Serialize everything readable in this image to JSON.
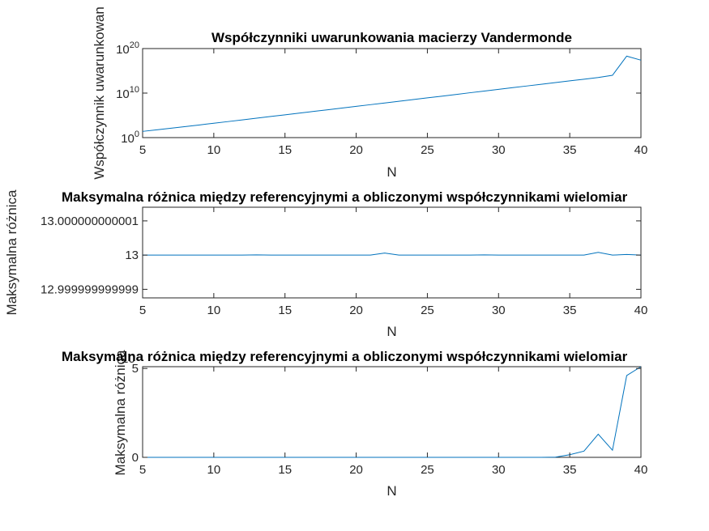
{
  "colors": {
    "series": "#0072BD",
    "axis": "#262626",
    "title": "#000000"
  },
  "chart_data": [
    {
      "type": "line",
      "title": "Współczynniki uwarunkowania macierzy Vandermonde",
      "xlabel": "N",
      "ylabel": "Współczynnik uwarunkowan",
      "xlim": [
        5,
        40
      ],
      "ylim": [
        1,
        1e+20
      ],
      "yscale": "log",
      "xticks": [
        "5",
        "10",
        "15",
        "20",
        "25",
        "30",
        "35",
        "40"
      ],
      "yticks": [
        {
          "value": 1,
          "base": "10",
          "exp": "0"
        },
        {
          "value": 10000000000.0,
          "base": "10",
          "exp": "10"
        },
        {
          "value": 1e+20,
          "base": "10",
          "exp": "20"
        }
      ],
      "x": [
        5,
        6,
        7,
        8,
        9,
        10,
        11,
        12,
        13,
        14,
        15,
        16,
        17,
        18,
        19,
        20,
        21,
        22,
        23,
        24,
        25,
        26,
        27,
        28,
        29,
        30,
        31,
        32,
        33,
        34,
        35,
        36,
        37,
        38,
        39,
        40
      ],
      "y": [
        25.0,
        55.0,
        130.0,
        300.0,
        700.0,
        1700.0,
        4000.0,
        9500.0,
        23000.0,
        55000.0,
        130000.0,
        320000.0,
        760000.0,
        1800000.0,
        4400000.0,
        10500000.0,
        25000000.0,
        60000000.0,
        145000000.0,
        350000000.0,
        850000000.0,
        2000000000.0,
        4900000000.0,
        12000000000.0,
        28000000000.0,
        68000000000.0,
        165000000000.0,
        400000000000.0,
        950000000000.0,
        2300000000000.0,
        5500000000000.0,
        13000000000000.0,
        32000000000000.0,
        100000000000000.0,
        2e+18,
        2.5e+17
      ]
    },
    {
      "type": "line",
      "title": "Maksymalna różnica między referencyjnymi a obliczonymi współczynnikami wielomiar",
      "xlabel": "N",
      "ylabel": "Maksymalna różnica",
      "xlim": [
        5,
        40
      ],
      "ylim": [
        12.99999999999875,
        13.0000000000014
      ],
      "xticks": [
        "5",
        "10",
        "15",
        "20",
        "25",
        "30",
        "35",
        "40"
      ],
      "yticks": [
        {
          "value": 12.999999999999,
          "label": "12.999999999999"
        },
        {
          "value": 13,
          "label": "13"
        },
        {
          "value": 13.000000000001,
          "label": "13.000000000001"
        }
      ],
      "x": [
        5,
        6,
        7,
        8,
        9,
        10,
        11,
        12,
        13,
        14,
        15,
        16,
        17,
        18,
        19,
        20,
        21,
        22,
        23,
        24,
        25,
        26,
        27,
        28,
        29,
        30,
        31,
        32,
        33,
        34,
        35,
        36,
        37,
        38,
        39,
        40
      ],
      "y": [
        13,
        13,
        13,
        13,
        13,
        13,
        13,
        13,
        13.000000000000005,
        13,
        13,
        13,
        13,
        13,
        13,
        13,
        13,
        13.00000000000006,
        13,
        13,
        13,
        13,
        13,
        13,
        13.000000000000005,
        13,
        13,
        13,
        13,
        13,
        13,
        13,
        13.00000000000008,
        13,
        13.00000000000002,
        13
      ]
    },
    {
      "type": "line",
      "title": "Maksymalna różnica między referencyjnymi a obliczonymi współczynnikami wielomiar",
      "xlabel": "N",
      "ylabel": "Maksymalna różnica",
      "ylabel_exponent": "10",
      "xlim": [
        5,
        40
      ],
      "ylim": [
        0,
        5.1
      ],
      "xticks": [
        "5",
        "10",
        "15",
        "20",
        "25",
        "30",
        "35",
        "40"
      ],
      "yticks": [
        {
          "value": 0,
          "label": "0"
        },
        {
          "value": 5,
          "label": "5"
        }
      ],
      "x": [
        5,
        6,
        7,
        8,
        9,
        10,
        11,
        12,
        13,
        14,
        15,
        16,
        17,
        18,
        19,
        20,
        21,
        22,
        23,
        24,
        25,
        26,
        27,
        28,
        29,
        30,
        31,
        32,
        33,
        34,
        35,
        36,
        37,
        38,
        39,
        40
      ],
      "y": [
        0,
        0,
        0,
        0,
        0,
        0,
        0,
        0,
        0,
        0,
        0,
        0,
        0,
        0,
        0,
        0,
        0,
        0,
        0,
        0,
        0,
        0,
        0,
        0,
        0,
        0,
        0,
        0,
        0,
        0.01,
        0.15,
        0.35,
        1.3,
        0.4,
        4.6,
        5.1
      ]
    }
  ]
}
